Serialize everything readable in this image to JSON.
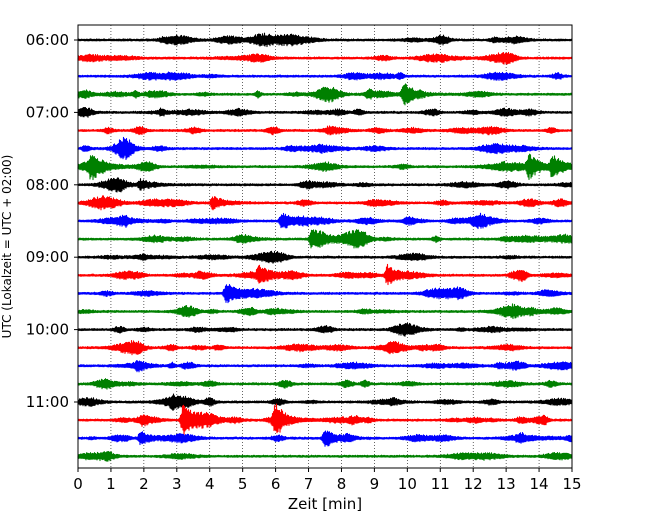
{
  "chart_data": {
    "type": "line",
    "title": "",
    "xlabel": "Zeit  [min]",
    "ylabel": "UTC (Lokalzeit = UTC + 02:00)",
    "xlim": [
      0,
      15
    ],
    "x_ticks": [
      "0",
      "1",
      "2",
      "3",
      "4",
      "5",
      "6",
      "7",
      "8",
      "9",
      "10",
      "11",
      "12",
      "13",
      "14",
      "15"
    ],
    "y_ticks": [
      "06:00",
      "07:00",
      "08:00",
      "09:00",
      "10:00",
      "11:00"
    ],
    "trace_interval_minutes": 15,
    "grid": "vertical dotted",
    "colors": [
      "#000000",
      "#ff0000",
      "#0000ff",
      "#008000"
    ],
    "trace_starts": [
      "06:00",
      "06:15",
      "06:30",
      "06:45",
      "07:00",
      "07:15",
      "07:30",
      "07:45",
      "08:00",
      "08:15",
      "08:30",
      "08:45",
      "09:00",
      "09:15",
      "09:30",
      "09:45",
      "10:00",
      "10:15",
      "10:30",
      "10:45",
      "11:00",
      "11:15",
      "11:30",
      "11:45"
    ],
    "events": [
      {
        "trace": 3,
        "minute": 9.9,
        "amp": 0.45
      },
      {
        "trace": 7,
        "minute": 0.4,
        "amp": 0.6
      },
      {
        "trace": 7,
        "minute": 13.7,
        "amp": 0.55
      },
      {
        "trace": 7,
        "minute": 14.4,
        "amp": 0.6
      },
      {
        "trace": 8,
        "minute": 1.9,
        "amp": 0.3
      },
      {
        "trace": 9,
        "minute": 4.1,
        "amp": 0.35
      },
      {
        "trace": 10,
        "minute": 6.2,
        "amp": 0.5
      },
      {
        "trace": 11,
        "minute": 7.1,
        "amp": 0.45
      },
      {
        "trace": 13,
        "minute": 5.5,
        "amp": 0.4
      },
      {
        "trace": 13,
        "minute": 9.4,
        "amp": 0.55
      },
      {
        "trace": 14,
        "minute": 4.5,
        "amp": 0.6
      },
      {
        "trace": 21,
        "minute": 3.2,
        "amp": 0.9
      },
      {
        "trace": 21,
        "minute": 6.0,
        "amp": 0.75
      },
      {
        "trace": 22,
        "minute": 1.9,
        "amp": 0.35
      },
      {
        "trace": 22,
        "minute": 7.5,
        "amp": 0.5
      }
    ]
  }
}
